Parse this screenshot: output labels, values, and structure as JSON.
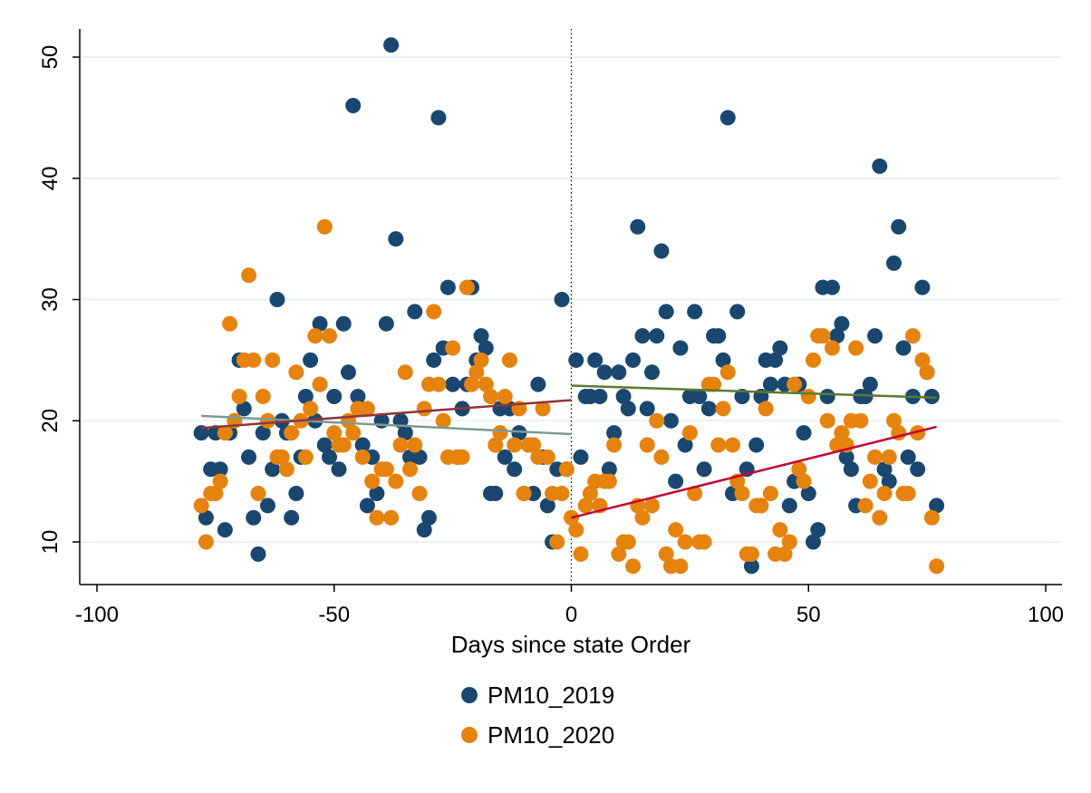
{
  "chart_data": {
    "type": "scatter",
    "title": "",
    "xlabel": "Days since state Order",
    "ylabel": "",
    "xlim": [
      -100,
      100
    ],
    "ylim": [
      6.5,
      52.5
    ],
    "x_ticks": [
      -100,
      -50,
      0,
      50,
      100
    ],
    "x_tick_labels": [
      "-100",
      "-50",
      "0",
      "50",
      "100"
    ],
    "y_ticks": [
      10,
      20,
      30,
      40,
      50
    ],
    "y_tick_labels": [
      "10",
      "20",
      "30",
      "40",
      "50"
    ],
    "grid": "horizontal",
    "reference_line_x": 0,
    "legend_position": "bottom",
    "series": [
      {
        "name": "PM10_2019",
        "color": "#1a476f",
        "points": [
          [
            -78,
            19
          ],
          [
            -77,
            12
          ],
          [
            -76,
            16
          ],
          [
            -75,
            19
          ],
          [
            -74,
            16
          ],
          [
            -73,
            11
          ],
          [
            -72,
            19
          ],
          [
            -70,
            25
          ],
          [
            -69,
            21
          ],
          [
            -68,
            17
          ],
          [
            -67,
            12
          ],
          [
            -66,
            9
          ],
          [
            -65,
            19
          ],
          [
            -64,
            13
          ],
          [
            -63,
            16
          ],
          [
            -62,
            30
          ],
          [
            -61,
            20
          ],
          [
            -60,
            19
          ],
          [
            -59,
            12
          ],
          [
            -58,
            14
          ],
          [
            -57,
            17
          ],
          [
            -56,
            22
          ],
          [
            -55,
            25
          ],
          [
            -54,
            20
          ],
          [
            -53,
            28
          ],
          [
            -52,
            18
          ],
          [
            -51,
            17
          ],
          [
            -50,
            22
          ],
          [
            -49,
            16
          ],
          [
            -48,
            28
          ],
          [
            -47,
            24
          ],
          [
            -46,
            46
          ],
          [
            -45,
            22
          ],
          [
            -44,
            18
          ],
          [
            -43,
            13
          ],
          [
            -42,
            17
          ],
          [
            -41,
            14
          ],
          [
            -40,
            20
          ],
          [
            -39,
            28
          ],
          [
            -38,
            51
          ],
          [
            -37,
            35
          ],
          [
            -36,
            20
          ],
          [
            -35,
            19
          ],
          [
            -34,
            17
          ],
          [
            -33,
            29
          ],
          [
            -32,
            17
          ],
          [
            -31,
            11
          ],
          [
            -30,
            12
          ],
          [
            -29,
            25
          ],
          [
            -28,
            45
          ],
          [
            -27,
            26
          ],
          [
            -26,
            31
          ],
          [
            -25,
            23
          ],
          [
            -24,
            17
          ],
          [
            -23,
            21
          ],
          [
            -22,
            23
          ],
          [
            -21,
            31
          ],
          [
            -20,
            25
          ],
          [
            -19,
            27
          ],
          [
            -18,
            26
          ],
          [
            -17,
            14
          ],
          [
            -16,
            14
          ],
          [
            -15,
            21
          ],
          [
            -14,
            17
          ],
          [
            -13,
            21
          ],
          [
            -12,
            16
          ],
          [
            -11,
            19
          ],
          [
            -10,
            14
          ],
          [
            -9,
            18
          ],
          [
            -8,
            14
          ],
          [
            -7,
            23
          ],
          [
            -6,
            17
          ],
          [
            -5,
            13
          ],
          [
            -4,
            10
          ],
          [
            -3,
            16
          ],
          [
            -2,
            30
          ],
          [
            -1,
            16
          ],
          [
            1,
            25
          ],
          [
            2,
            17
          ],
          [
            3,
            22
          ],
          [
            4,
            22
          ],
          [
            5,
            25
          ],
          [
            6,
            22
          ],
          [
            7,
            24
          ],
          [
            8,
            16
          ],
          [
            9,
            19
          ],
          [
            10,
            24
          ],
          [
            11,
            22
          ],
          [
            12,
            21
          ],
          [
            13,
            25
          ],
          [
            14,
            36
          ],
          [
            15,
            27
          ],
          [
            16,
            21
          ],
          [
            17,
            24
          ],
          [
            18,
            27
          ],
          [
            19,
            34
          ],
          [
            20,
            29
          ],
          [
            21,
            20
          ],
          [
            22,
            15
          ],
          [
            23,
            26
          ],
          [
            24,
            18
          ],
          [
            25,
            22
          ],
          [
            26,
            29
          ],
          [
            27,
            22
          ],
          [
            28,
            16
          ],
          [
            29,
            21
          ],
          [
            30,
            27
          ],
          [
            31,
            27
          ],
          [
            32,
            25
          ],
          [
            33,
            45
          ],
          [
            34,
            14
          ],
          [
            35,
            29
          ],
          [
            36,
            22
          ],
          [
            37,
            16
          ],
          [
            38,
            8
          ],
          [
            39,
            18
          ],
          [
            40,
            22
          ],
          [
            41,
            25
          ],
          [
            42,
            23
          ],
          [
            43,
            25
          ],
          [
            44,
            26
          ],
          [
            45,
            23
          ],
          [
            46,
            13
          ],
          [
            47,
            15
          ],
          [
            48,
            23
          ],
          [
            49,
            19
          ],
          [
            50,
            14
          ],
          [
            51,
            10
          ],
          [
            52,
            11
          ],
          [
            53,
            31
          ],
          [
            54,
            22
          ],
          [
            55,
            31
          ],
          [
            56,
            27
          ],
          [
            57,
            28
          ],
          [
            58,
            17
          ],
          [
            59,
            16
          ],
          [
            60,
            13
          ],
          [
            61,
            22
          ],
          [
            62,
            22
          ],
          [
            63,
            23
          ],
          [
            64,
            27
          ],
          [
            65,
            41
          ],
          [
            66,
            16
          ],
          [
            67,
            15
          ],
          [
            68,
            33
          ],
          [
            69,
            36
          ],
          [
            70,
            26
          ],
          [
            71,
            17
          ],
          [
            72,
            22
          ],
          [
            73,
            16
          ],
          [
            74,
            31
          ],
          [
            75,
            24
          ],
          [
            76,
            22
          ],
          [
            77,
            13
          ]
        ],
        "fit": {
          "x": [
            -78,
            0
          ],
          "y": [
            20.4,
            18.9
          ],
          "color": "#7f9a96"
        },
        "fit_after": {
          "x": [
            0,
            77
          ],
          "y": [
            22.9,
            21.9
          ],
          "color": "#5c7a2f"
        }
      },
      {
        "name": "PM10_2020",
        "color": "#e6820e",
        "points": [
          [
            -78,
            13
          ],
          [
            -77,
            10
          ],
          [
            -76,
            14
          ],
          [
            -75,
            14
          ],
          [
            -74,
            15
          ],
          [
            -73,
            19
          ],
          [
            -72,
            28
          ],
          [
            -71,
            20
          ],
          [
            -70,
            22
          ],
          [
            -69,
            25
          ],
          [
            -68,
            32
          ],
          [
            -67,
            25
          ],
          [
            -66,
            14
          ],
          [
            -65,
            22
          ],
          [
            -64,
            20
          ],
          [
            -63,
            25
          ],
          [
            -62,
            17
          ],
          [
            -61,
            17
          ],
          [
            -60,
            16
          ],
          [
            -59,
            19
          ],
          [
            -58,
            24
          ],
          [
            -57,
            20
          ],
          [
            -56,
            17
          ],
          [
            -55,
            21
          ],
          [
            -54,
            27
          ],
          [
            -53,
            23
          ],
          [
            -52,
            36
          ],
          [
            -51,
            27
          ],
          [
            -50,
            19
          ],
          [
            -49,
            18
          ],
          [
            -48,
            18
          ],
          [
            -47,
            20
          ],
          [
            -46,
            19
          ],
          [
            -45,
            21
          ],
          [
            -44,
            17
          ],
          [
            -43,
            21
          ],
          [
            -42,
            15
          ],
          [
            -41,
            12
          ],
          [
            -40,
            16
          ],
          [
            -39,
            16
          ],
          [
            -38,
            12
          ],
          [
            -37,
            15
          ],
          [
            -36,
            18
          ],
          [
            -35,
            24
          ],
          [
            -34,
            16
          ],
          [
            -33,
            18
          ],
          [
            -32,
            14
          ],
          [
            -31,
            21
          ],
          [
            -30,
            23
          ],
          [
            -29,
            29
          ],
          [
            -28,
            23
          ],
          [
            -27,
            20
          ],
          [
            -26,
            17
          ],
          [
            -25,
            26
          ],
          [
            -24,
            17
          ],
          [
            -23,
            17
          ],
          [
            -22,
            31
          ],
          [
            -21,
            23
          ],
          [
            -20,
            24
          ],
          [
            -19,
            25
          ],
          [
            -18,
            23
          ],
          [
            -17,
            22
          ],
          [
            -16,
            18
          ],
          [
            -15,
            19
          ],
          [
            -14,
            22
          ],
          [
            -13,
            25
          ],
          [
            -12,
            18
          ],
          [
            -11,
            21
          ],
          [
            -10,
            14
          ],
          [
            -9,
            18
          ],
          [
            -8,
            18
          ],
          [
            -7,
            17
          ],
          [
            -6,
            21
          ],
          [
            -5,
            17
          ],
          [
            -4,
            14
          ],
          [
            -3,
            10
          ],
          [
            -2,
            14
          ],
          [
            -1,
            16
          ],
          [
            0,
            12
          ],
          [
            1,
            11
          ],
          [
            2,
            9
          ],
          [
            3,
            13
          ],
          [
            4,
            14
          ],
          [
            5,
            15
          ],
          [
            6,
            13
          ],
          [
            7,
            15
          ],
          [
            8,
            15
          ],
          [
            9,
            18
          ],
          [
            10,
            9
          ],
          [
            11,
            10
          ],
          [
            12,
            10
          ],
          [
            13,
            8
          ],
          [
            14,
            13
          ],
          [
            15,
            12
          ],
          [
            16,
            18
          ],
          [
            17,
            13
          ],
          [
            18,
            20
          ],
          [
            19,
            17
          ],
          [
            20,
            9
          ],
          [
            21,
            8
          ],
          [
            22,
            11
          ],
          [
            23,
            8
          ],
          [
            24,
            10
          ],
          [
            25,
            19
          ],
          [
            26,
            14
          ],
          [
            27,
            10
          ],
          [
            28,
            10
          ],
          [
            29,
            23
          ],
          [
            30,
            23
          ],
          [
            31,
            18
          ],
          [
            32,
            21
          ],
          [
            33,
            24
          ],
          [
            34,
            18
          ],
          [
            35,
            15
          ],
          [
            36,
            14
          ],
          [
            37,
            9
          ],
          [
            38,
            9
          ],
          [
            39,
            13
          ],
          [
            40,
            13
          ],
          [
            41,
            21
          ],
          [
            42,
            14
          ],
          [
            43,
            9
          ],
          [
            44,
            11
          ],
          [
            45,
            9
          ],
          [
            46,
            10
          ],
          [
            47,
            23
          ],
          [
            48,
            16
          ],
          [
            49,
            15
          ],
          [
            50,
            22
          ],
          [
            51,
            25
          ],
          [
            52,
            27
          ],
          [
            53,
            27
          ],
          [
            54,
            20
          ],
          [
            55,
            26
          ],
          [
            56,
            18
          ],
          [
            57,
            19
          ],
          [
            58,
            18
          ],
          [
            59,
            20
          ],
          [
            60,
            26
          ],
          [
            61,
            20
          ],
          [
            62,
            13
          ],
          [
            63,
            15
          ],
          [
            64,
            17
          ],
          [
            65,
            12
          ],
          [
            66,
            14
          ],
          [
            67,
            17
          ],
          [
            68,
            20
          ],
          [
            69,
            19
          ],
          [
            70,
            14
          ],
          [
            71,
            14
          ],
          [
            72,
            27
          ],
          [
            73,
            19
          ],
          [
            74,
            25
          ],
          [
            75,
            24
          ],
          [
            76,
            12
          ],
          [
            77,
            8
          ]
        ],
        "fit": {
          "x": [
            -78,
            0
          ],
          "y": [
            19.4,
            21.7
          ],
          "color": "#90353b"
        },
        "fit_after": {
          "x": [
            0,
            77
          ],
          "y": [
            12.0,
            19.5
          ],
          "color": "#c10534"
        }
      }
    ]
  }
}
